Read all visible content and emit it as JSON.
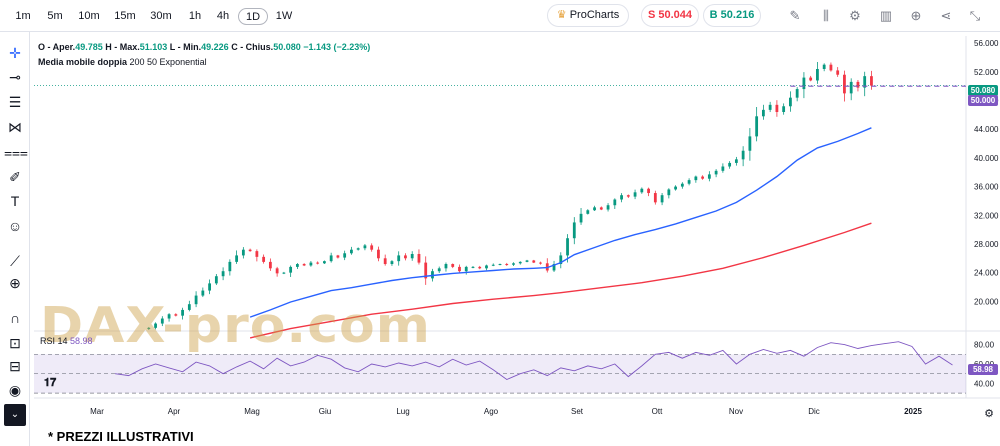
{
  "toolbar": {
    "timeframes": [
      "1m",
      "5m",
      "10m",
      "15m",
      "30m",
      "1h",
      "4h",
      "1D",
      "1W"
    ],
    "active_timeframe": "1D",
    "procharts_label": "ProCharts",
    "sell_label": "S 50.044",
    "buy_label": "B 50.216",
    "sell_color": "#f23645",
    "buy_color": "#089981",
    "icons": [
      "pencil-icon",
      "candles-icon",
      "gear-icon",
      "bars-icon",
      "plus-circle-icon",
      "share-icon",
      "collapse-icon"
    ]
  },
  "left_tools": [
    "crosshair-icon",
    "line-icon",
    "horizontal-lines-icon",
    "pattern-icon",
    "fib-icon",
    "brush-icon",
    "text-icon",
    "emoji-icon",
    "ruler-icon",
    "zoom-icon",
    "magnet-icon",
    "lock-icon",
    "unlock-icon",
    "eye-icon",
    "chevron-down-icon"
  ],
  "legend": {
    "open_label": "O - Aper.",
    "open": "49.785",
    "high_label": "H - Max.",
    "high": "51.103",
    "low_label": "L - Min.",
    "low": "49.226",
    "close_label": "C - Chius.",
    "close": "50.080",
    "change": "−1.143 (−2.23%)",
    "ma_title": "Media mobile doppia",
    "ma_params": "200 50 Exponential",
    "rsi_title": "RSI 14",
    "rsi_value": "58.98"
  },
  "price_tags": {
    "last_price": "50.080",
    "ma_price": "50.000",
    "rsi_tag": "58.98"
  },
  "watermark": "DAX-pro.com",
  "footnote": "* PREZZI ILLUSTRATIVI",
  "chart_data": [
    {
      "type": "candlestick",
      "xlabel": "",
      "ylabel": "",
      "x_ticks": [
        "Mar",
        "Apr",
        "Mag",
        "Giu",
        "Lug",
        "Ago",
        "Set",
        "Ott",
        "Nov",
        "Dic",
        "2025"
      ],
      "y_ticks": [
        "56.000",
        "52.000",
        "48.000",
        "44.000",
        "40.000",
        "36.000",
        "32.000",
        "28.000",
        "24.000",
        "20.000"
      ],
      "ylim": [
        16000,
        57000
      ],
      "x_range_days": [
        0,
        365
      ],
      "series": [
        {
          "name": "Price",
          "type": "candlestick",
          "points_day_close": [
            [
              125,
              16300
            ],
            [
              130,
              16900
            ],
            [
              135,
              17600
            ],
            [
              140,
              18200
            ],
            [
              145,
              18000
            ],
            [
              150,
              18800
            ],
            [
              155,
              19600
            ],
            [
              160,
              20800
            ],
            [
              165,
              21500
            ],
            [
              170,
              22500
            ],
            [
              175,
              23500
            ],
            [
              180,
              24200
            ],
            [
              185,
              25500
            ],
            [
              190,
              26400
            ],
            [
              195,
              27200
            ],
            [
              200,
              27000
            ],
            [
              205,
              26200
            ],
            [
              210,
              25500
            ],
            [
              215,
              24600
            ],
            [
              220,
              23900
            ],
            [
              225,
              24000
            ],
            [
              230,
              24800
            ],
            [
              235,
              25200
            ],
            [
              240,
              25000
            ],
            [
              245,
              25400
            ],
            [
              250,
              25300
            ],
            [
              255,
              25600
            ],
            [
              260,
              26400
            ],
            [
              265,
              26100
            ],
            [
              270,
              26700
            ],
            [
              275,
              27200
            ],
            [
              280,
              27400
            ],
            [
              285,
              27800
            ],
            [
              290,
              27200
            ],
            [
              295,
              26000
            ],
            [
              300,
              25200
            ],
            [
              305,
              25600
            ],
            [
              310,
              26400
            ],
            [
              315,
              26000
            ],
            [
              320,
              26600
            ],
            [
              325,
              25400
            ],
            [
              330,
              23200
            ],
            [
              335,
              24200
            ],
            [
              340,
              24600
            ],
            [
              345,
              25200
            ],
            [
              350,
              24800
            ],
            [
              355,
              24200
            ],
            [
              360,
              24800
            ],
            [
              365,
              24800
            ],
            [
              370,
              24600
            ],
            [
              375,
              25000
            ],
            [
              380,
              25100
            ],
            [
              385,
              25200
            ],
            [
              390,
              25100
            ],
            [
              395,
              25300
            ],
            [
              400,
              25500
            ],
            [
              405,
              25700
            ],
            [
              410,
              25400
            ],
            [
              415,
              25300
            ],
            [
              420,
              24300
            ],
            [
              425,
              25200
            ],
            [
              430,
              26400
            ],
            [
              435,
              28800
            ],
            [
              440,
              31000
            ],
            [
              445,
              32200
            ],
            [
              450,
              32700
            ],
            [
              455,
              33100
            ],
            [
              460,
              32800
            ],
            [
              465,
              33400
            ],
            [
              470,
              34200
            ],
            [
              475,
              34800
            ],
            [
              480,
              34600
            ],
            [
              485,
              35200
            ],
            [
              490,
              35700
            ],
            [
              495,
              35100
            ],
            [
              500,
              33800
            ],
            [
              505,
              34800
            ],
            [
              510,
              35600
            ],
            [
              515,
              36000
            ],
            [
              520,
              36400
            ],
            [
              525,
              36900
            ],
            [
              530,
              37400
            ],
            [
              535,
              37100
            ],
            [
              540,
              37700
            ],
            [
              545,
              38200
            ],
            [
              550,
              38800
            ],
            [
              555,
              39300
            ],
            [
              560,
              39800
            ],
            [
              565,
              41000
            ],
            [
              570,
              43000
            ],
            [
              575,
              45800
            ],
            [
              580,
              46700
            ],
            [
              585,
              47400
            ],
            [
              590,
              46400
            ],
            [
              595,
              47200
            ],
            [
              600,
              48400
            ],
            [
              605,
              49600
            ],
            [
              610,
              51200
            ],
            [
              615,
              50800
            ],
            [
              620,
              52400
            ],
            [
              625,
              53000
            ],
            [
              630,
              52200
            ],
            [
              635,
              51600
            ],
            [
              640,
              49000
            ],
            [
              645,
              50600
            ],
            [
              650,
              49800
            ],
            [
              655,
              51400
            ],
            [
              660,
              50080
            ]
          ]
        },
        {
          "name": "EMA 50",
          "type": "line",
          "color": "#2962ff",
          "points": [
            [
              200,
              17800
            ],
            [
              215,
              18800
            ],
            [
              230,
              19900
            ],
            [
              245,
              20700
            ],
            [
              260,
              21500
            ],
            [
              275,
              21900
            ],
            [
              290,
              22400
            ],
            [
              305,
              22900
            ],
            [
              320,
              23300
            ],
            [
              335,
              23600
            ],
            [
              350,
              23900
            ],
            [
              365,
              24100
            ],
            [
              380,
              24300
            ],
            [
              395,
              24500
            ],
            [
              410,
              24600
            ],
            [
              420,
              24700
            ],
            [
              430,
              25400
            ],
            [
              440,
              26500
            ],
            [
              455,
              27500
            ],
            [
              470,
              28500
            ],
            [
              485,
              29300
            ],
            [
              500,
              30000
            ],
            [
              515,
              30800
            ],
            [
              530,
              31700
            ],
            [
              545,
              32600
            ],
            [
              560,
              33800
            ],
            [
              575,
              35500
            ],
            [
              590,
              37400
            ],
            [
              605,
              39700
            ],
            [
              620,
              41400
            ],
            [
              635,
              42300
            ],
            [
              650,
              43400
            ],
            [
              660,
              44200
            ]
          ]
        },
        {
          "name": "EMA 200",
          "type": "line",
          "color": "#f23645",
          "points": [
            [
              200,
              14900
            ],
            [
              230,
              16200
            ],
            [
              260,
              17200
            ],
            [
              290,
              18200
            ],
            [
              320,
              18900
            ],
            [
              350,
              19700
            ],
            [
              380,
              20300
            ],
            [
              410,
              20800
            ],
            [
              430,
              21200
            ],
            [
              460,
              21900
            ],
            [
              490,
              22600
            ],
            [
              520,
              23500
            ],
            [
              550,
              24600
            ],
            [
              580,
              26100
            ],
            [
              610,
              27800
            ],
            [
              640,
              29600
            ],
            [
              660,
              30900
            ]
          ]
        }
      ]
    },
    {
      "type": "line",
      "xlabel": "",
      "ylabel": "",
      "y_ticks": [
        "80.00",
        "60.00",
        "40.00"
      ],
      "ylim": [
        27,
        93
      ],
      "series": [
        {
          "name": "RSI 14",
          "color": "#7e57c2",
          "points": [
            [
              40,
              50
            ],
            [
              50,
              48
            ],
            [
              60,
              55
            ],
            [
              70,
              60
            ],
            [
              80,
              56
            ],
            [
              90,
              52
            ],
            [
              100,
              62
            ],
            [
              110,
              58
            ],
            [
              120,
              50
            ],
            [
              130,
              57
            ],
            [
              140,
              63
            ],
            [
              150,
              55
            ],
            [
              160,
              66
            ],
            [
              170,
              58
            ],
            [
              180,
              62
            ],
            [
              190,
              69
            ],
            [
              200,
              65
            ],
            [
              210,
              56
            ],
            [
              220,
              52
            ],
            [
              230,
              60
            ],
            [
              240,
              57
            ],
            [
              250,
              61
            ],
            [
              260,
              58
            ],
            [
              270,
              62
            ],
            [
              280,
              57
            ],
            [
              290,
              65
            ],
            [
              300,
              59
            ],
            [
              310,
              63
            ],
            [
              320,
              54
            ],
            [
              330,
              44
            ],
            [
              340,
              50
            ],
            [
              350,
              54
            ],
            [
              360,
              48
            ],
            [
              370,
              56
            ],
            [
              380,
              53
            ],
            [
              390,
              58
            ],
            [
              400,
              55
            ],
            [
              410,
              60
            ],
            [
              420,
              47
            ],
            [
              430,
              58
            ],
            [
              440,
              70
            ],
            [
              450,
              72
            ],
            [
              460,
              66
            ],
            [
              470,
              72
            ],
            [
              480,
              69
            ],
            [
              490,
              74
            ],
            [
              500,
              60
            ],
            [
              510,
              70
            ],
            [
              520,
              75
            ],
            [
              530,
              71
            ],
            [
              540,
              74
            ],
            [
              550,
              68
            ],
            [
              560,
              77
            ],
            [
              570,
              82
            ],
            [
              580,
              80
            ],
            [
              590,
              76
            ],
            [
              600,
              79
            ],
            [
              610,
              81
            ],
            [
              620,
              83
            ],
            [
              630,
              78
            ],
            [
              640,
              60
            ],
            [
              650,
              68
            ],
            [
              660,
              58.98
            ]
          ]
        }
      ],
      "levels": [
        70,
        50,
        30
      ]
    }
  ]
}
